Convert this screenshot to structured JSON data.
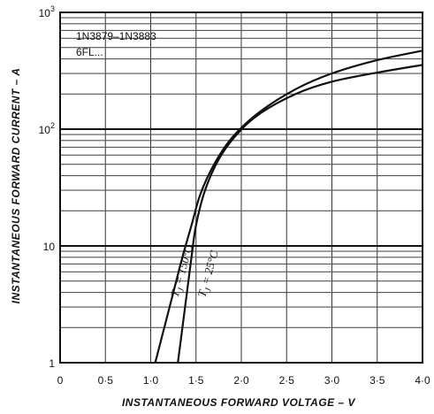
{
  "chart_data": {
    "type": "line",
    "title": "",
    "xlabel": "INSTANTANEOUS FORWARD VOLTAGE – V",
    "ylabel": "INSTANTANEOUS FORWARD CURRENT – A",
    "xlim": [
      0,
      4.0
    ],
    "ylim": [
      1,
      1000
    ],
    "yscale": "log",
    "grid": true,
    "x_ticks": [
      "0",
      "0·5",
      "1·0",
      "1·5",
      "2·0",
      "2·5",
      "3·0",
      "3·5",
      "4·0"
    ],
    "y_ticks": [
      {
        "base": "1",
        "exp": ""
      },
      {
        "base": "10",
        "exp": ""
      },
      {
        "base": "10",
        "exp": "2"
      },
      {
        "base": "10",
        "exp": "3"
      }
    ],
    "annotation": {
      "line1": "1N3879–1N3883",
      "line2": "6FL..."
    },
    "series": [
      {
        "label_main": "T",
        "label_sub": "J",
        "label_rest": " = 150°C",
        "points": [
          [
            1.05,
            1
          ],
          [
            1.15,
            2
          ],
          [
            1.25,
            4
          ],
          [
            1.35,
            8
          ],
          [
            1.45,
            15
          ],
          [
            1.55,
            28
          ],
          [
            1.7,
            50
          ],
          [
            1.9,
            85
          ],
          [
            2.2,
            140
          ],
          [
            2.6,
            220
          ],
          [
            3.0,
            300
          ],
          [
            3.5,
            390
          ],
          [
            4.0,
            470
          ]
        ]
      },
      {
        "label_main": "T",
        "label_sub": "J",
        "label_rest": " = 25°C",
        "points": [
          [
            1.3,
            1
          ],
          [
            1.35,
            2
          ],
          [
            1.4,
            4
          ],
          [
            1.45,
            8
          ],
          [
            1.5,
            15
          ],
          [
            1.6,
            30
          ],
          [
            1.75,
            55
          ],
          [
            1.95,
            90
          ],
          [
            2.2,
            135
          ],
          [
            2.6,
            200
          ],
          [
            3.0,
            255
          ],
          [
            3.5,
            305
          ],
          [
            4.0,
            355
          ]
        ]
      }
    ]
  }
}
